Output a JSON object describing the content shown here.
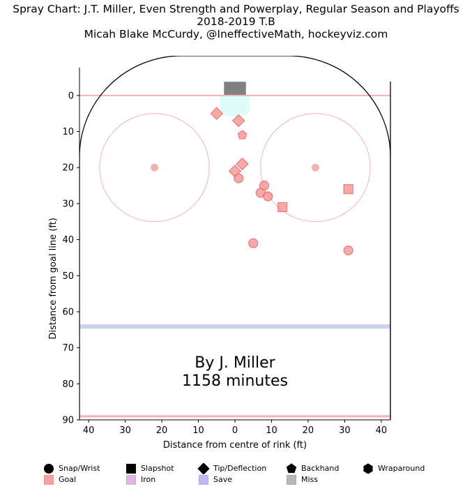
{
  "header": {
    "title": "Spray Chart: J.T. Miller, Even Strength and Powerplay, Regular Season and Playoffs",
    "subtitle": "2018-2019 T.B",
    "credit": "Micah Blake McCurdy, @IneffectiveMath, hockeyviz.com"
  },
  "annotation": {
    "line1": "By J. Miller",
    "line2": "1158 minutes"
  },
  "colors": {
    "goal": "#f38c8c",
    "rink_red": "#f3b2b2",
    "blue_line": "#c7d2ea",
    "crease": "#dffcfb",
    "net": "#808080"
  },
  "legend": {
    "items": [
      {
        "label": "Snap/Wrist",
        "icon": "circle",
        "color": "#000000"
      },
      {
        "label": "Slapshot",
        "icon": "square",
        "color": "#000000"
      },
      {
        "label": "Tip/Deflection",
        "icon": "diamond",
        "color": "#000000"
      },
      {
        "label": "Backhand",
        "icon": "pentagon",
        "color": "#000000"
      },
      {
        "label": "Wraparound",
        "icon": "hexagon",
        "color": "#000000"
      },
      {
        "label": "Goal",
        "icon": "square",
        "color": "#f38c8c"
      },
      {
        "label": "Iron",
        "icon": "square",
        "color": "#d9a3d9"
      },
      {
        "label": "Save",
        "icon": "square",
        "color": "#a9a9f6"
      },
      {
        "label": "Miss",
        "icon": "square",
        "color": "#a6a6a6"
      }
    ]
  },
  "chart_data": {
    "type": "scatter",
    "title": "Spray Chart: J.T. Miller, Even Strength and Powerplay, Regular Season and Playoffs",
    "xlabel": "Distance from centre of rink (ft)",
    "ylabel": "Distance from goal line (ft)",
    "xlim": [
      42.5,
      -42.5
    ],
    "ylim": [
      90,
      -11
    ],
    "x_ticks": [
      40,
      30,
      20,
      10,
      0,
      10,
      20,
      30,
      40
    ],
    "y_ticks": [
      0,
      10,
      20,
      30,
      40,
      50,
      60,
      70,
      80,
      90
    ],
    "points": [
      {
        "x": -5,
        "y": 5,
        "shot": "Tip/Deflection",
        "result": "Goal"
      },
      {
        "x": 1,
        "y": 7,
        "shot": "Tip/Deflection",
        "result": "Goal"
      },
      {
        "x": 2,
        "y": 11,
        "shot": "Backhand",
        "result": "Goal"
      },
      {
        "x": 2,
        "y": 19,
        "shot": "Tip/Deflection",
        "result": "Goal"
      },
      {
        "x": 0,
        "y": 21,
        "shot": "Tip/Deflection",
        "result": "Goal"
      },
      {
        "x": 1,
        "y": 23,
        "shot": "Snap/Wrist",
        "result": "Goal"
      },
      {
        "x": 8,
        "y": 25,
        "shot": "Snap/Wrist",
        "result": "Goal"
      },
      {
        "x": 7,
        "y": 27,
        "shot": "Snap/Wrist",
        "result": "Goal"
      },
      {
        "x": 9,
        "y": 28,
        "shot": "Snap/Wrist",
        "result": "Goal"
      },
      {
        "x": 13,
        "y": 31,
        "shot": "Slapshot",
        "result": "Goal"
      },
      {
        "x": 31,
        "y": 26,
        "shot": "Slapshot",
        "result": "Goal"
      },
      {
        "x": 5,
        "y": 41,
        "shot": "Snap/Wrist",
        "result": "Goal"
      },
      {
        "x": 31,
        "y": 43,
        "shot": "Snap/Wrist",
        "result": "Goal"
      }
    ]
  }
}
